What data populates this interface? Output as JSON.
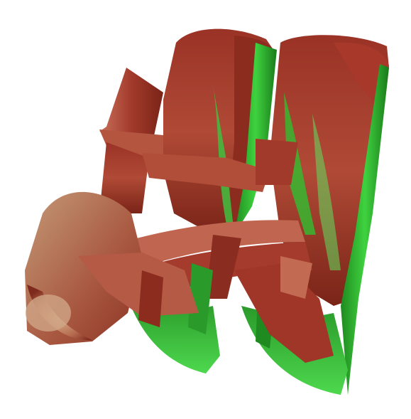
{
  "scene": {
    "subject": "rendered-3d-isosurface",
    "colors": {
      "background": "#ffffff",
      "red_dark": "#7a2418",
      "red_mid": "#a8392a",
      "red_light": "#c9705a",
      "tan": "#c49a78",
      "green_dark": "#1f8a1f",
      "green_mid": "#2fbf2f",
      "green_light": "#5ee05e",
      "highlight": "#e8a890"
    }
  }
}
